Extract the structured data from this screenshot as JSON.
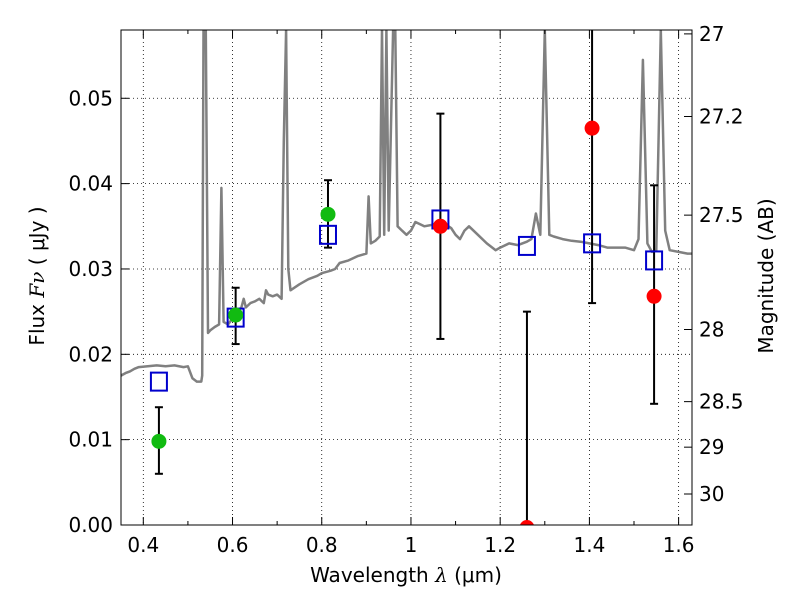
{
  "chart_data": {
    "type": "scatter",
    "xlabel_prefix": "Wavelength",
    "xlabel_symbol": "λ",
    "xlabel_unit": "(μm)",
    "ylabel_prefix": "Flux",
    "ylabel_symbol": "Fν",
    "ylabel_unit": "( μJy )",
    "y2label": "Magnitude (AB)",
    "xlim": [
      0.35,
      1.63
    ],
    "ylim": [
      0.0,
      0.058
    ],
    "grid": true,
    "x_ticks": [
      0.4,
      0.6,
      0.8,
      1.0,
      1.2,
      1.4,
      1.6
    ],
    "x_tick_labels": [
      "0.4",
      "0.6",
      "0.8",
      "1",
      "1.2",
      "1.4",
      "1.6"
    ],
    "y_ticks": [
      0.0,
      0.01,
      0.02,
      0.03,
      0.04,
      0.05
    ],
    "y_tick_labels": [
      "0.00",
      "0.01",
      "0.02",
      "0.03",
      "0.04",
      "0.05"
    ],
    "y2_ticks": [
      27,
      27.2,
      27.5,
      28,
      28.5,
      29,
      30
    ],
    "y2_tick_labels": [
      "27",
      "27.2",
      "27.5",
      "28",
      "28.5",
      "29",
      "30"
    ],
    "colors": {
      "model": "#808080",
      "model_photometry": "#0000cc",
      "detection": "#11bb11",
      "upper_limit": "#ff0000",
      "errorbar": "#000000",
      "grid": "#000000"
    },
    "model_spectrum": [
      [
        0.35,
        0.0175
      ],
      [
        0.36,
        0.0178
      ],
      [
        0.37,
        0.018
      ],
      [
        0.38,
        0.0183
      ],
      [
        0.39,
        0.0185
      ],
      [
        0.41,
        0.0186
      ],
      [
        0.43,
        0.0187
      ],
      [
        0.45,
        0.0186
      ],
      [
        0.47,
        0.0187
      ],
      [
        0.49,
        0.0185
      ],
      [
        0.5,
        0.0186
      ],
      [
        0.51,
        0.0172
      ],
      [
        0.52,
        0.0168
      ],
      [
        0.53,
        0.0168
      ],
      [
        0.532,
        0.0175
      ],
      [
        0.535,
        0.058
      ],
      [
        0.54,
        0.058
      ],
      [
        0.545,
        0.0225
      ],
      [
        0.55,
        0.0228
      ],
      [
        0.56,
        0.0232
      ],
      [
        0.57,
        0.0235
      ],
      [
        0.575,
        0.0395
      ],
      [
        0.58,
        0.0238
      ],
      [
        0.59,
        0.0235
      ],
      [
        0.6,
        0.0242
      ],
      [
        0.61,
        0.025
      ],
      [
        0.62,
        0.0255
      ],
      [
        0.625,
        0.0265
      ],
      [
        0.63,
        0.0255
      ],
      [
        0.64,
        0.026
      ],
      [
        0.65,
        0.0262
      ],
      [
        0.66,
        0.0265
      ],
      [
        0.67,
        0.026
      ],
      [
        0.675,
        0.0275
      ],
      [
        0.68,
        0.027
      ],
      [
        0.69,
        0.0268
      ],
      [
        0.7,
        0.027
      ],
      [
        0.71,
        0.0265
      ],
      [
        0.715,
        0.045
      ],
      [
        0.72,
        0.058
      ],
      [
        0.725,
        0.03
      ],
      [
        0.73,
        0.0275
      ],
      [
        0.75,
        0.0282
      ],
      [
        0.77,
        0.0288
      ],
      [
        0.79,
        0.0292
      ],
      [
        0.8,
        0.0295
      ],
      [
        0.82,
        0.0298
      ],
      [
        0.83,
        0.03
      ],
      [
        0.84,
        0.0307
      ],
      [
        0.86,
        0.031
      ],
      [
        0.88,
        0.0315
      ],
      [
        0.9,
        0.0318
      ],
      [
        0.905,
        0.0385
      ],
      [
        0.91,
        0.033
      ],
      [
        0.92,
        0.0333
      ],
      [
        0.93,
        0.0338
      ],
      [
        0.935,
        0.058
      ],
      [
        0.94,
        0.034
      ],
      [
        0.945,
        0.058
      ],
      [
        0.95,
        0.0345
      ],
      [
        0.96,
        0.058
      ],
      [
        0.965,
        0.058
      ],
      [
        0.97,
        0.035
      ],
      [
        0.98,
        0.0345
      ],
      [
        0.99,
        0.034
      ],
      [
        1.0,
        0.0345
      ],
      [
        1.01,
        0.0355
      ],
      [
        1.03,
        0.035
      ],
      [
        1.05,
        0.0352
      ],
      [
        1.07,
        0.0355
      ],
      [
        1.09,
        0.0348
      ],
      [
        1.1,
        0.034
      ],
      [
        1.11,
        0.0335
      ],
      [
        1.12,
        0.0345
      ],
      [
        1.13,
        0.035
      ],
      [
        1.15,
        0.034
      ],
      [
        1.17,
        0.033
      ],
      [
        1.19,
        0.0322
      ],
      [
        1.2,
        0.0325
      ],
      [
        1.22,
        0.033
      ],
      [
        1.24,
        0.0328
      ],
      [
        1.26,
        0.0332
      ],
      [
        1.27,
        0.0335
      ],
      [
        1.28,
        0.0365
      ],
      [
        1.29,
        0.034
      ],
      [
        1.3,
        0.058
      ],
      [
        1.31,
        0.034
      ],
      [
        1.32,
        0.0338
      ],
      [
        1.34,
        0.0335
      ],
      [
        1.36,
        0.0333
      ],
      [
        1.38,
        0.0332
      ],
      [
        1.4,
        0.033
      ],
      [
        1.42,
        0.0328
      ],
      [
        1.44,
        0.0325
      ],
      [
        1.46,
        0.0325
      ],
      [
        1.48,
        0.0325
      ],
      [
        1.5,
        0.0322
      ],
      [
        1.51,
        0.0335
      ],
      [
        1.52,
        0.0545
      ],
      [
        1.53,
        0.033
      ],
      [
        1.54,
        0.032
      ],
      [
        1.55,
        0.0322
      ],
      [
        1.56,
        0.058
      ],
      [
        1.57,
        0.0345
      ],
      [
        1.58,
        0.0322
      ],
      [
        1.6,
        0.032
      ],
      [
        1.62,
        0.0318
      ],
      [
        1.63,
        0.0318
      ]
    ],
    "model_photometry": [
      {
        "x": 0.435,
        "y": 0.0168
      },
      {
        "x": 0.607,
        "y": 0.0243
      },
      {
        "x": 0.814,
        "y": 0.034
      },
      {
        "x": 1.066,
        "y": 0.0358
      },
      {
        "x": 1.26,
        "y": 0.0327
      },
      {
        "x": 1.406,
        "y": 0.033
      },
      {
        "x": 1.545,
        "y": 0.031
      }
    ],
    "detections": [
      {
        "x": 0.435,
        "y": 0.0098,
        "err_low": 0.006,
        "err_high": 0.0138
      },
      {
        "x": 0.607,
        "y": 0.0246,
        "err_low": 0.0212,
        "err_high": 0.0278
      },
      {
        "x": 0.814,
        "y": 0.0364,
        "err_low": 0.0325,
        "err_high": 0.0404
      }
    ],
    "upper_limits": [
      {
        "x": 1.066,
        "y": 0.035,
        "err_low": 0.0218,
        "err_high": 0.0482
      },
      {
        "x": 1.26,
        "y": -0.0003,
        "err_low": -0.0005,
        "err_high": 0.025
      },
      {
        "x": 1.406,
        "y": 0.0465,
        "err_low": 0.026,
        "err_high": 0.0585
      },
      {
        "x": 1.545,
        "y": 0.0268,
        "err_low": 0.0142,
        "err_high": 0.0398
      }
    ]
  }
}
